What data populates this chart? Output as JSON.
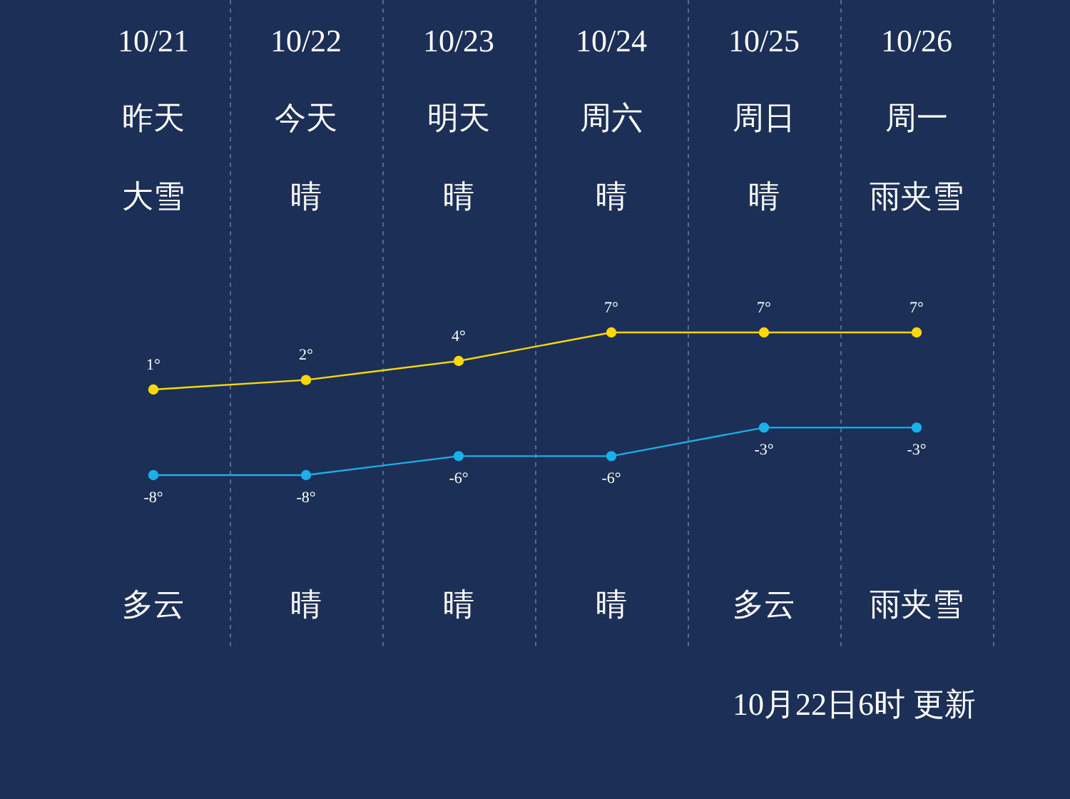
{
  "chart_data": {
    "type": "line",
    "categories": [
      "10/21",
      "10/22",
      "10/23",
      "10/24",
      "10/25",
      "10/26"
    ],
    "series": [
      {
        "color": "#ffd800",
        "values": [
          1,
          2,
          4,
          7,
          7,
          7
        ],
        "value_labels": [
          "1°",
          "2°",
          "4°",
          "7°",
          "7°",
          "7°"
        ]
      },
      {
        "color": "#1ab0e8",
        "values": [
          -8,
          -8,
          -6,
          -6,
          -3,
          -3
        ],
        "value_labels": [
          "-8°",
          "-8°",
          "-6°",
          "-6°",
          "-3°",
          "-3°"
        ]
      }
    ],
    "marker": "circle",
    "grid": "x",
    "annotations": [
      "昨天",
      "今天",
      "明天",
      "周六",
      "周日",
      "周一",
      "大雪",
      "晴",
      "晴",
      "晴",
      "晴",
      "雨夹雪",
      "多云",
      "晴",
      "晴",
      "晴",
      "多云",
      "雨夹雪",
      "10月22日6时 更新"
    ]
  }
}
